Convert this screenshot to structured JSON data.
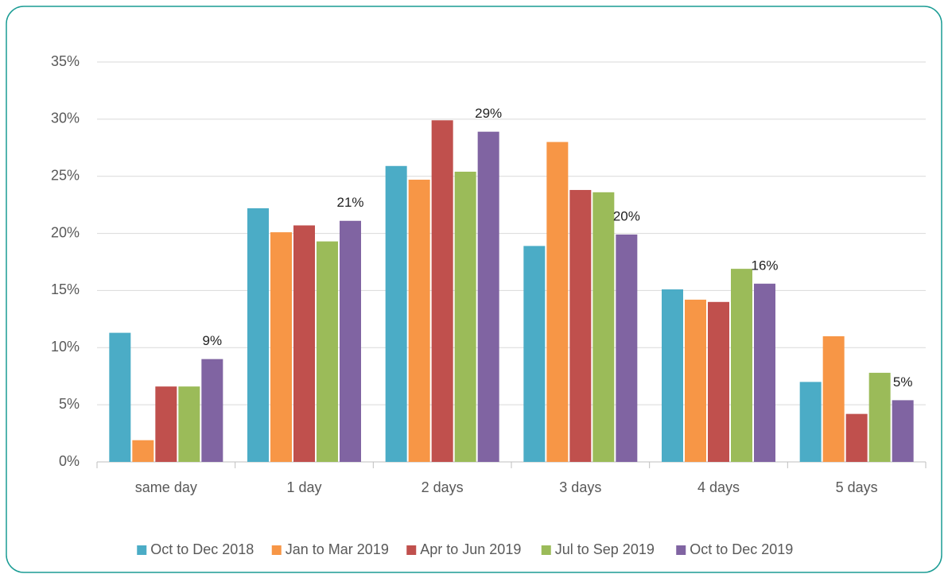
{
  "chart_data": {
    "type": "bar",
    "categories": [
      "same day",
      "1 day",
      "2 days",
      "3 days",
      "4 days",
      "5 days"
    ],
    "series": [
      {
        "name": "Oct to Dec 2018",
        "color": "#4bacc6",
        "values": [
          11.3,
          22.2,
          25.9,
          18.9,
          15.1,
          7.0
        ]
      },
      {
        "name": "Jan to Mar 2019",
        "color": "#f79646",
        "values": [
          1.9,
          20.1,
          24.7,
          28.0,
          14.2,
          11.0
        ]
      },
      {
        "name": "Apr to Jun 2019",
        "color": "#c0504d",
        "values": [
          6.6,
          20.7,
          29.9,
          23.8,
          14.0,
          4.2
        ]
      },
      {
        "name": "Jul to Sep 2019",
        "color": "#9bbb59",
        "values": [
          6.6,
          19.3,
          25.4,
          23.6,
          16.9,
          7.8
        ]
      },
      {
        "name": "Oct to Dec 2019",
        "color": "#8064a2",
        "values": [
          9.0,
          21.1,
          28.9,
          19.9,
          15.6,
          5.4
        ],
        "value_labels": [
          "9%",
          "21%",
          "29%",
          "20%",
          "16%",
          "5%"
        ]
      }
    ],
    "ylim": [
      0,
      35
    ],
    "yticks": [
      {
        "value": 0,
        "label": "0%"
      },
      {
        "value": 5,
        "label": "5%"
      },
      {
        "value": 10,
        "label": "10%"
      },
      {
        "value": 15,
        "label": "15%"
      },
      {
        "value": 20,
        "label": "20%"
      },
      {
        "value": 25,
        "label": "25%"
      },
      {
        "value": 30,
        "label": "30%"
      },
      {
        "value": 35,
        "label": "35%"
      }
    ],
    "grid": true,
    "legend": "bottom"
  }
}
